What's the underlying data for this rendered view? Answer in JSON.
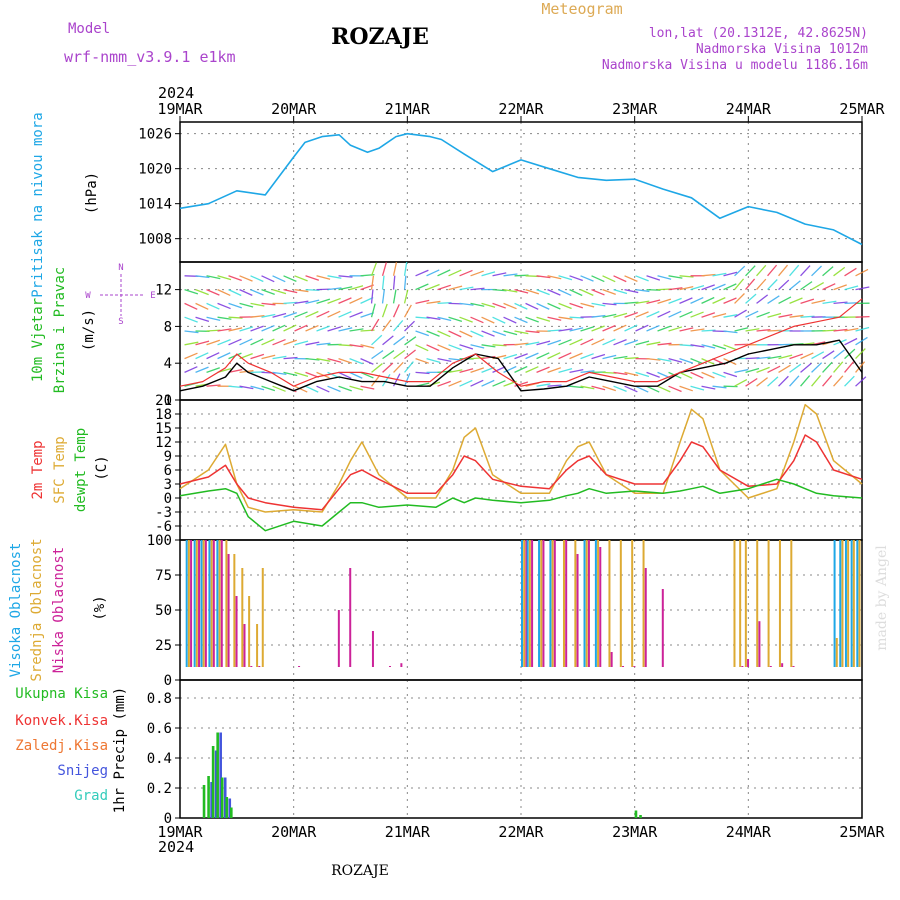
{
  "header": {
    "model_label": "Model",
    "model_name": "wrf-nmm_v3.9.1  e1km",
    "title": "ROZAJE",
    "meteogram_label": "Meteogram",
    "lonlat": "lon,lat (20.1312E, 42.8625N)",
    "elevation": "Nadmorska Visina 1012m",
    "model_elevation": "Nadmorska Visina u modelu 1186.16m",
    "footer_title": "ROZAJE",
    "credit": "made by Angel"
  },
  "time_axis": {
    "year": "2024",
    "labels": [
      "19MAR",
      "20MAR",
      "21MAR",
      "22MAR",
      "23MAR",
      "24MAR",
      "25MAR"
    ]
  },
  "colors": {
    "pressure": "#1ea7e6",
    "temp2m": "#ee3333",
    "sfc_temp": "#ddaa33",
    "dewpoint": "#22bb22",
    "high_cloud": "#1ea7e6",
    "mid_cloud": "#ddaa33",
    "low_cloud": "#cc2299",
    "total_precip": "#22bb22",
    "convective": "#ee3333",
    "snow": "#4455dd",
    "header_purple": "#aa44cc",
    "meteogram_gold": "#ddaa55"
  },
  "chart_data": [
    {
      "type": "line",
      "panel": "pressure",
      "ylabel_1": "Pritisak na nivou mora",
      "ylabel_2": "(hPa)",
      "yticks": [
        "1008",
        "1014",
        "1020",
        "1026"
      ],
      "ylim": [
        1004,
        1028
      ],
      "x": [
        0,
        0.25,
        0.5,
        0.75,
        1,
        1.1,
        1.25,
        1.4,
        1.5,
        1.65,
        1.75,
        1.9,
        2,
        2.2,
        2.3,
        2.5,
        2.75,
        3,
        3.25,
        3.5,
        3.75,
        4,
        4.25,
        4.5,
        4.75,
        5,
        5.25,
        5.5,
        5.75,
        6
      ],
      "series": [
        {
          "values": [
            1013.2,
            1014,
            1016.2,
            1015.5,
            1022,
            1024.5,
            1025.5,
            1025.8,
            1024,
            1022.8,
            1023.5,
            1025.5,
            1026,
            1025.5,
            1025,
            1022.5,
            1019.5,
            1021.5,
            1020,
            1018.5,
            1018,
            1018.2,
            1016.5,
            1015,
            1011.5,
            1013.5,
            1012.5,
            1010.5,
            1009.5,
            1007
          ]
        }
      ]
    },
    {
      "type": "line",
      "panel": "wind",
      "ylabel_1": "10m Vjetar",
      "ylabel_2": "Brzina i Pravac",
      "ylabel_3": "(m/s)",
      "compass": {
        "n": "N",
        "s": "S",
        "e": "E",
        "w": "W"
      },
      "yticks": [
        "0",
        "4",
        "8",
        "12"
      ],
      "ylim": [
        0,
        15
      ],
      "x": [
        0,
        0.2,
        0.4,
        0.5,
        0.6,
        0.8,
        1,
        1.2,
        1.4,
        1.6,
        1.8,
        2,
        2.2,
        2.4,
        2.6,
        2.8,
        3,
        3.2,
        3.4,
        3.6,
        3.8,
        4,
        4.2,
        4.4,
        4.6,
        4.8,
        5,
        5.2,
        5.4,
        5.6,
        5.8,
        6
      ],
      "series": [
        {
          "values": [
            1.5,
            2,
            3.5,
            5,
            4,
            3,
            1.5,
            2.5,
            3,
            3,
            2.5,
            2,
            2,
            4,
            5,
            3,
            1.5,
            2,
            2,
            3,
            2.5,
            2,
            2,
            3,
            4,
            5,
            6,
            7,
            8,
            8.5,
            9,
            11
          ]
        },
        {
          "values": [
            1,
            1.5,
            2.5,
            4,
            3,
            2,
            1,
            2,
            2.5,
            2,
            2,
            1.5,
            1.5,
            3.5,
            5,
            4.5,
            1,
            1.2,
            1.5,
            2.5,
            2,
            1.5,
            1.5,
            3,
            3.5,
            4,
            5,
            5.5,
            6,
            6,
            6.5,
            3
          ]
        }
      ]
    },
    {
      "type": "line",
      "panel": "temperature",
      "ylabel_1": "2m Temp",
      "ylabel_2": "SFC Temp",
      "ylabel_3": "dewpt Temp",
      "ylabel_4": "(C)",
      "yticks": [
        "-6",
        "-3",
        "0",
        "3",
        "6",
        "9",
        "12",
        "15",
        "18",
        "21"
      ],
      "ylim": [
        -9,
        21
      ],
      "x": [
        0,
        0.25,
        0.4,
        0.5,
        0.6,
        0.75,
        1,
        1.25,
        1.4,
        1.5,
        1.6,
        1.75,
        2,
        2.25,
        2.4,
        2.5,
        2.6,
        2.75,
        3,
        3.25,
        3.4,
        3.5,
        3.6,
        3.75,
        4,
        4.25,
        4.4,
        4.5,
        4.6,
        4.75,
        5,
        5.25,
        5.4,
        5.5,
        5.6,
        5.75,
        6
      ],
      "series": [
        {
          "values": [
            3,
            4.5,
            7,
            3,
            0,
            -1,
            -2,
            -2.5,
            2,
            5,
            6,
            4,
            1,
            1,
            5,
            9,
            8,
            4,
            2.5,
            2,
            6,
            8,
            9,
            5,
            3,
            3,
            8,
            12,
            11,
            6,
            2.5,
            3,
            8,
            13.5,
            12,
            6,
            4
          ]
        },
        {
          "values": [
            2,
            6,
            11.5,
            3,
            -2,
            -3,
            -2.5,
            -3,
            3,
            8,
            12,
            5,
            0,
            0,
            6,
            13,
            15,
            5,
            1,
            1,
            8,
            11,
            12,
            5,
            1,
            1,
            12,
            19,
            17,
            6,
            0,
            2,
            12,
            20,
            18,
            8,
            3
          ]
        },
        {
          "values": [
            0.5,
            1.5,
            2,
            1,
            -4,
            -7,
            -5,
            -6,
            -3,
            -1,
            -1,
            -2,
            -1.5,
            -2,
            0,
            -1,
            0,
            -0.5,
            -1,
            -0.5,
            0.5,
            1,
            2,
            1,
            1.5,
            1,
            1.5,
            2,
            2.5,
            1,
            2,
            4,
            3,
            2,
            1,
            0.5,
            0
          ]
        }
      ]
    },
    {
      "type": "bar",
      "panel": "clouds",
      "ylabel_1": "Visoka Oblacnost",
      "ylabel_2": "Srednja Oblacnost",
      "ylabel_3": "Niska Oblacnost",
      "ylabel_4": "(%)",
      "yticks": [
        "0",
        "25",
        "50",
        "75",
        "100"
      ],
      "ylim": [
        0,
        100
      ],
      "x": [
        0.05,
        0.12,
        0.18,
        0.25,
        0.32,
        0.38,
        0.45,
        0.52,
        0.58,
        0.65,
        0.7,
        1.0,
        1.2,
        1.35,
        1.45,
        1.65,
        1.8,
        1.9,
        2.6,
        3.0,
        3.05,
        3.15,
        3.25,
        3.35,
        3.45,
        3.55,
        3.65,
        3.75,
        3.85,
        3.95,
        4.05,
        4.2,
        4.3,
        4.4,
        4.5,
        4.55,
        4.85,
        4.9,
        4.95,
        5.05,
        5.15,
        5.25,
        5.35,
        5.75,
        5.8,
        5.85,
        5.9,
        5.95
      ],
      "series": [
        {
          "name": "high",
          "values": [
            100,
            100,
            100,
            100,
            100,
            0,
            0,
            0,
            0,
            0,
            0,
            0,
            0,
            0,
            0,
            0,
            0,
            0,
            0,
            100,
            100,
            100,
            100,
            0,
            0,
            100,
            100,
            0,
            0,
            0,
            0,
            0,
            0,
            0,
            0,
            0,
            0,
            0,
            0,
            0,
            0,
            0,
            0,
            100,
            100,
            100,
            100,
            100
          ]
        },
        {
          "name": "mid",
          "values": [
            100,
            100,
            100,
            100,
            100,
            100,
            90,
            80,
            60,
            40,
            80,
            0,
            0,
            0,
            0,
            0,
            0,
            0,
            0,
            100,
            100,
            100,
            100,
            100,
            100,
            100,
            100,
            100,
            100,
            100,
            100,
            0,
            0,
            0,
            0,
            0,
            100,
            100,
            100,
            100,
            100,
            100,
            100,
            30,
            100,
            100,
            100,
            100
          ]
        },
        {
          "name": "low",
          "values": [
            100,
            100,
            100,
            100,
            100,
            90,
            60,
            40,
            10,
            10,
            0,
            10,
            5,
            50,
            80,
            35,
            10,
            12,
            5,
            100,
            100,
            100,
            100,
            100,
            90,
            100,
            95,
            20,
            10,
            10,
            80,
            65,
            3,
            3,
            8,
            5,
            5,
            10,
            15,
            42,
            10,
            12,
            10,
            0,
            0,
            0,
            0,
            0
          ]
        }
      ]
    },
    {
      "type": "bar",
      "panel": "precip",
      "ylabel_1": "1hr Precip (mm)",
      "legend": [
        "Ukupna Kisa",
        "Konvek.Kisa",
        "Zaledj.Kisa",
        "Snijeg",
        "Grad"
      ],
      "yticks": [
        "0",
        "0.2",
        "0.4",
        "0.6",
        "0.8"
      ],
      "ylim": [
        0,
        0.92
      ],
      "x": [
        0.2,
        0.24,
        0.28,
        0.32,
        0.36,
        0.4,
        0.44,
        4.0,
        4.04
      ],
      "series": [
        {
          "name": "Ukupna Kisa",
          "values": [
            0.22,
            0.28,
            0.48,
            0.57,
            0.27,
            0.14,
            0.07,
            0.05,
            0.02
          ]
        },
        {
          "name": "Snijeg",
          "values": [
            0,
            0.24,
            0.45,
            0.57,
            0.27,
            0.13,
            0,
            0,
            0
          ]
        }
      ]
    }
  ]
}
